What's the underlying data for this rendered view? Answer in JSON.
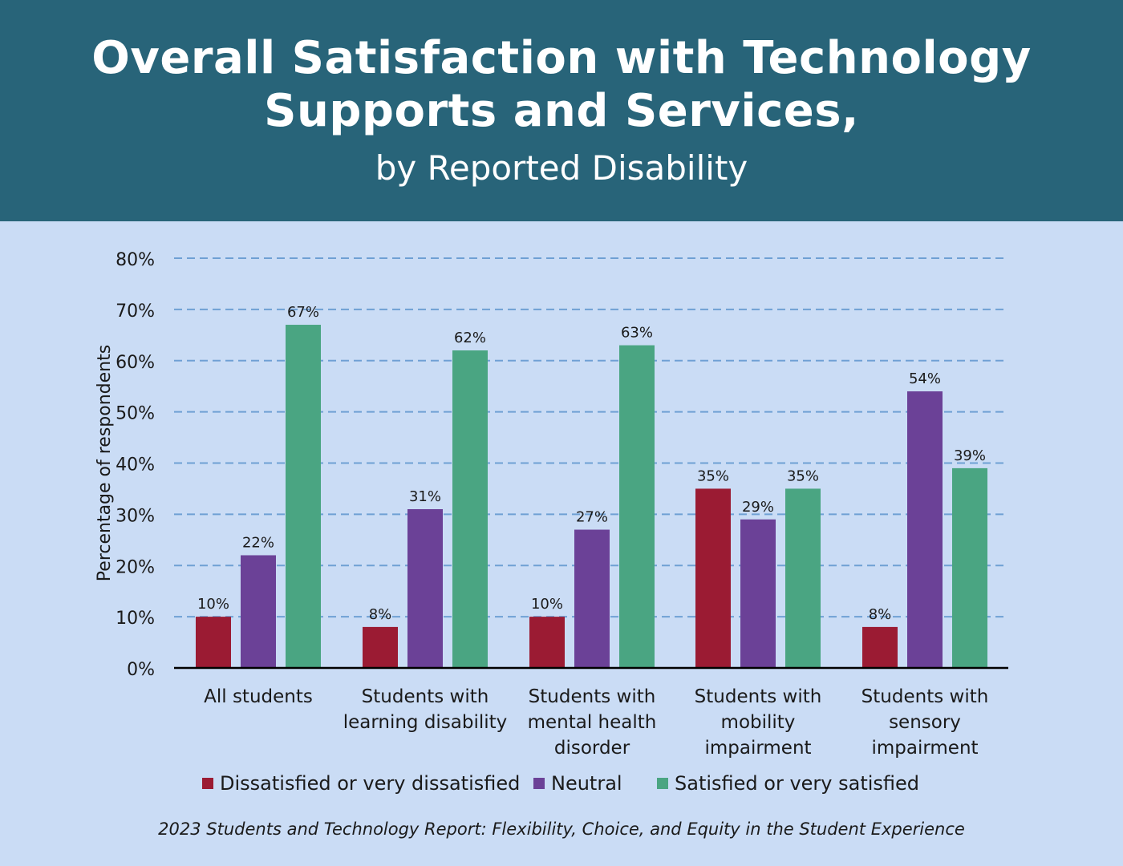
{
  "header": {
    "title_line1": "Overall Satisfaction with Technology",
    "title_line2": "Supports and Services,",
    "subtitle": "by Reported Disability"
  },
  "chart_data": {
    "type": "bar",
    "title": "Overall Satisfaction with Technology Supports and Services, by Reported Disability",
    "ylabel": "Percentage of respondents",
    "ylim": [
      0,
      80
    ],
    "yticks": [
      "0%",
      "10%",
      "20%",
      "30%",
      "40%",
      "50%",
      "60%",
      "70%",
      "80%"
    ],
    "grid": true,
    "legend_position": "bottom",
    "categories": [
      [
        "All students"
      ],
      [
        "Students with",
        "learning disability"
      ],
      [
        "Students with",
        "mental health",
        "disorder"
      ],
      [
        "Students with",
        "mobility",
        "impairment"
      ],
      [
        "Students with",
        "sensory",
        "impairment"
      ]
    ],
    "series": [
      {
        "name": "Dissatisfied or very dissatisfied",
        "color": "#9b1b33",
        "values": [
          10,
          8,
          10,
          35,
          8
        ],
        "labels": [
          "10%",
          "8%",
          "10%",
          "35%",
          "8%"
        ]
      },
      {
        "name": "Neutral",
        "color": "#6b4197",
        "values": [
          22,
          31,
          27,
          29,
          54
        ],
        "labels": [
          "22%",
          "31%",
          "27%",
          "29%",
          "54%"
        ]
      },
      {
        "name": "Satisfied or very satisfied",
        "color": "#4aa582",
        "values": [
          67,
          62,
          63,
          35,
          39
        ],
        "labels": [
          "67%",
          "62%",
          "63%",
          "35%",
          "39%"
        ]
      }
    ]
  },
  "source": "2023 Students and Technology Report: Flexibility, Choice, and Equity in the Student Experience"
}
